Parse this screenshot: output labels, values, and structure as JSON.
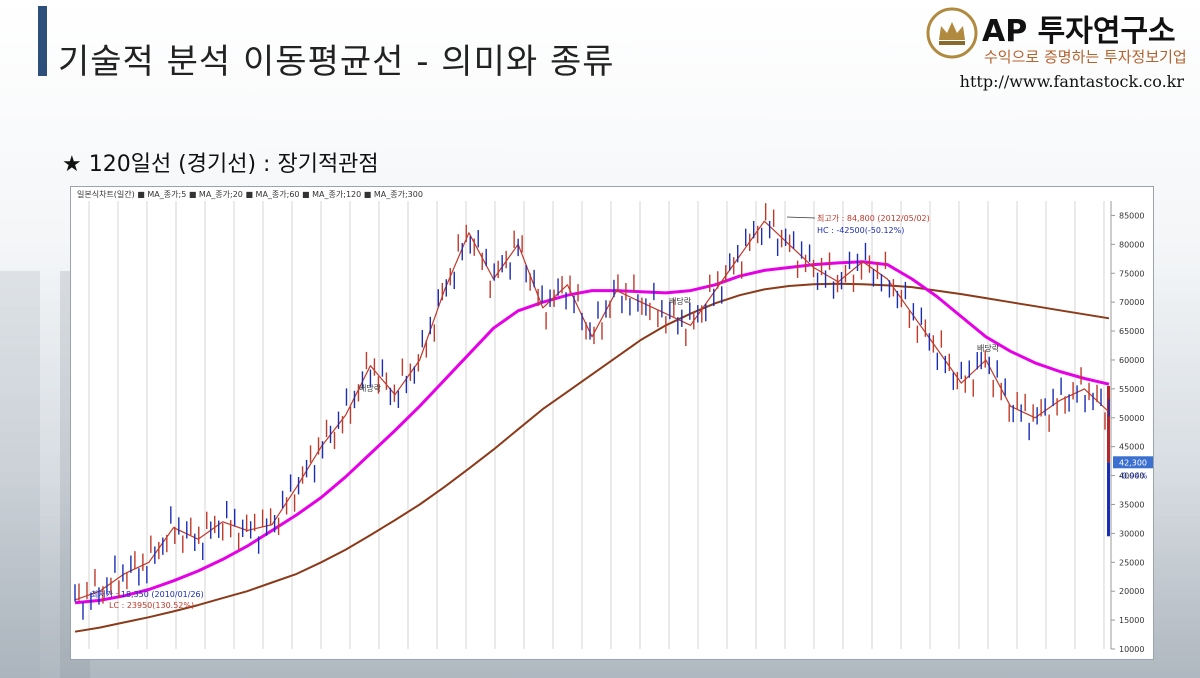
{
  "slide": {
    "title": "기술적 분석 이동평균선 - 의미와 종류",
    "subtitle": "★ 120일선 (경기선) : 장기적관점"
  },
  "logo": {
    "name": "AP 투자연구소",
    "slogan": "수익으로 증명하는 투자정보기업",
    "url": "http://www.fantastock.co.kr",
    "crown_icon": "crown-laurel-icon"
  },
  "colors": {
    "accent_bar": "#2d4f7c",
    "price": "#1a2db5",
    "ma5": "#c0392b",
    "ma20": "#2c3e8f",
    "ma60": "#8b2a2a",
    "ma120": "#e600e6",
    "ma300": "#8b3a1a"
  },
  "chart_data": {
    "type": "line",
    "legend_text": "일본식차트(일간) ■ MA_종가;5 ■ MA_종가;20 ■ MA_종가;60 ■ MA_종가;120 ■ MA_종가;300",
    "ylim": [
      10000,
      87500
    ],
    "y_ticks": [
      10000,
      15000,
      20000,
      25000,
      30000,
      35000,
      40000,
      45000,
      50000,
      55000,
      60000,
      65000,
      70000,
      75000,
      80000,
      85000
    ],
    "current_price_label": "42,300",
    "current_change_label": "-0.94%",
    "annotations": [
      {
        "text": "최고가 : 84,800 (2012/05/02)"
      },
      {
        "text": "HC : -42500(-50.12%)"
      },
      {
        "text": "최저가 : 18,350 (2010/01/26)"
      },
      {
        "text": "LC : 23950(130.52%)"
      },
      {
        "text": "배당락"
      },
      {
        "text": "배당락"
      },
      {
        "text": "배당락"
      }
    ],
    "series": [
      {
        "name": "MA_종가;5",
        "values": [
          18500,
          20000,
          23000,
          25000,
          31000,
          29000,
          32000,
          30500,
          31500,
          38000,
          45000,
          50500,
          59000,
          54000,
          60000,
          72000,
          82000,
          74000,
          80000,
          69000,
          73000,
          64000,
          72000,
          70000,
          68000,
          66000,
          72000,
          78000,
          84000,
          80000,
          76000,
          73500,
          77000,
          74000,
          68000,
          62000,
          56000,
          60000,
          52000,
          50000,
          53000,
          55000,
          51000
        ]
      },
      {
        "name": "MA_종가;120",
        "values": [
          18000,
          18400,
          19200,
          20300,
          21800,
          23500,
          25500,
          27800,
          30500,
          33200,
          36200,
          39800,
          43800,
          47800,
          52000,
          56500,
          61000,
          65500,
          68500,
          70000,
          71200,
          72000,
          72000,
          71800,
          71600,
          72000,
          73000,
          74500,
          75500,
          76000,
          76500,
          76800,
          77000,
          76500,
          74000,
          71000,
          67500,
          64000,
          61500,
          59500,
          58000,
          56800,
          55800
        ]
      },
      {
        "name": "MA_종가;300",
        "values": [
          13000,
          13700,
          14600,
          15500,
          16500,
          17600,
          18800,
          20000,
          21500,
          23000,
          25000,
          27200,
          29700,
          32300,
          35000,
          38000,
          41200,
          44500,
          48000,
          51500,
          54500,
          57500,
          60500,
          63500,
          66000,
          68000,
          69800,
          71200,
          72200,
          72800,
          73100,
          73200,
          73100,
          72900,
          72600,
          72000,
          71400,
          70700,
          70000,
          69300,
          68600,
          67900,
          67200
        ]
      }
    ],
    "x_count": 43
  }
}
